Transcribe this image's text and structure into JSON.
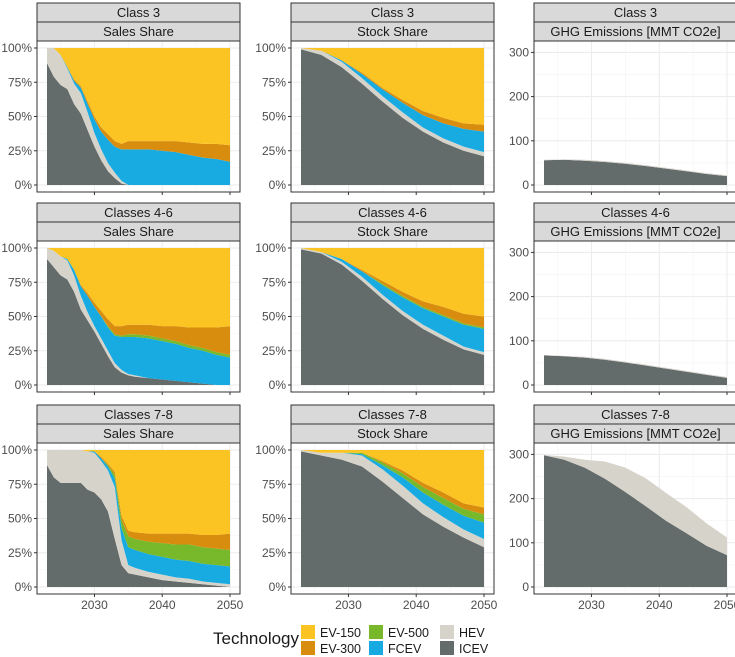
{
  "colors": {
    "ICEV": "#636b6b",
    "HEV": "#d6d3cb",
    "FCEV": "#17abe2",
    "EV-500": "#78b92c",
    "EV-300": "#d98d0f",
    "EV-150": "#fcc422"
  },
  "chart_data": {
    "type": "area",
    "x_ticks": [
      2030,
      2040,
      2050
    ],
    "x_range": [
      2023,
      2050
    ],
    "share_ylim": [
      0,
      100
    ],
    "share_ticks": [
      "0%",
      "25%",
      "50%",
      "75%",
      "100%"
    ],
    "ghg_ylim": [
      0,
      310
    ],
    "ghg_ticks": [
      "0",
      "100",
      "200",
      "300"
    ],
    "stack_order": [
      "ICEV",
      "HEV",
      "FCEV",
      "EV-500",
      "EV-300",
      "EV-150"
    ],
    "rows": [
      {
        "strip": "Class 3"
      },
      {
        "strip": "Classes 4-6"
      },
      {
        "strip": "Classes 7-8"
      }
    ],
    "columns": [
      {
        "strip": "Sales Share",
        "kind": "share"
      },
      {
        "strip": "Stock Share",
        "kind": "share"
      },
      {
        "strip": "GHG Emissions [MMT CO2e]",
        "kind": "ghg"
      }
    ],
    "panels": [
      {
        "row": 0,
        "col": 0,
        "x": [
          2023,
          2024,
          2025,
          2026,
          2027,
          2028,
          2029,
          2030,
          2031,
          2032,
          2033,
          2034,
          2035,
          2036,
          2038,
          2040,
          2042,
          2044,
          2046,
          2048,
          2050
        ],
        "series": [
          {
            "name": "ICEV",
            "values": [
              89,
              79,
              73,
              70,
              59,
              52,
              40,
              28,
              18,
              10,
              5,
              1,
              0,
              0,
              0,
              0,
              0,
              0,
              0,
              0,
              0
            ]
          },
          {
            "name": "HEV",
            "values": [
              11,
              21,
              22,
              15,
              15,
              15,
              13,
              10,
              8,
              6,
              4,
              2,
              0,
              0,
              0,
              0,
              0,
              0,
              0,
              0,
              0
            ]
          },
          {
            "name": "FCEV",
            "values": [
              0,
              0,
              0,
              1,
              2,
              4,
              6,
              10,
              13,
              17,
              19,
              23,
              26,
              26,
              26,
              25,
              24,
              22,
              20,
              19,
              17
            ]
          },
          {
            "name": "EV-500",
            "values": [
              0,
              0,
              0,
              0,
              0,
              0,
              0,
              0,
              0,
              0,
              0,
              0,
              0,
              0,
              0,
              0,
              0,
              0,
              0,
              0,
              0
            ]
          },
          {
            "name": "EV-300",
            "values": [
              0,
              0,
              0,
              0,
              1,
              1,
              2,
              2,
              3,
              4,
              4,
              4,
              6,
              6,
              6,
              7,
              8,
              9,
              10,
              11,
              12
            ]
          },
          {
            "name": "EV-150",
            "values": [
              0,
              0,
              5,
              14,
              23,
              28,
              39,
              50,
              58,
              63,
              68,
              70,
              68,
              68,
              68,
              68,
              68,
              69,
              70,
              70,
              71
            ]
          }
        ]
      },
      {
        "row": 0,
        "col": 1,
        "x": [
          2023,
          2026,
          2029,
          2032,
          2035,
          2038,
          2041,
          2044,
          2047,
          2050
        ],
        "series": [
          {
            "name": "ICEV",
            "values": [
              99,
              95,
              86,
              74,
              61,
              49,
              39,
              31,
              25,
              21
            ]
          },
          {
            "name": "HEV",
            "values": [
              1,
              3,
              4,
              4,
              4,
              4,
              3,
              3,
              3,
              3
            ]
          },
          {
            "name": "FCEV",
            "values": [
              0,
              0,
              1,
              3,
              5,
              7,
              9,
              11,
              13,
              15
            ]
          },
          {
            "name": "EV-500",
            "values": [
              0,
              0,
              0,
              0,
              0,
              0,
              0,
              0,
              0,
              0
            ]
          },
          {
            "name": "EV-300",
            "values": [
              0,
              0,
              0,
              1,
              1,
              2,
              3,
              4,
              4,
              5
            ]
          },
          {
            "name": "EV-150",
            "values": [
              0,
              2,
              9,
              18,
              29,
              38,
              46,
              51,
              55,
              56
            ]
          }
        ]
      },
      {
        "row": 0,
        "col": 2,
        "x": [
          2023,
          2026,
          2029,
          2032,
          2035,
          2038,
          2041,
          2044,
          2047,
          2050
        ],
        "series": [
          {
            "name": "ICEV",
            "values": [
              56,
              57,
              55,
              52,
              48,
              43,
              37,
              31,
              25,
              20
            ]
          },
          {
            "name": "HEV",
            "values": [
              1,
              1,
              2,
              2,
              2,
              2,
              2,
              2,
              2,
              2
            ]
          }
        ]
      },
      {
        "row": 1,
        "col": 0,
        "x": [
          2023,
          2024,
          2025,
          2026,
          2027,
          2028,
          2029,
          2030,
          2031,
          2032,
          2033,
          2034,
          2035,
          2036,
          2038,
          2040,
          2042,
          2044,
          2046,
          2048,
          2050
        ],
        "series": [
          {
            "name": "ICEV",
            "values": [
              92,
              86,
              80,
              77,
              68,
              55,
              47,
              39,
              30,
              21,
              13,
              9,
              7,
              6,
              5,
              4,
              3,
              2,
              1,
              0,
              0
            ]
          },
          {
            "name": "HEV",
            "values": [
              8,
              12,
              14,
              14,
              12,
              10,
              6,
              4,
              4,
              4,
              3,
              2,
              1,
              1,
              0,
              0,
              0,
              0,
              0,
              0,
              0
            ]
          },
          {
            "name": "FCEV",
            "values": [
              0,
              0,
              0,
              1,
              4,
              7,
              12,
              14,
              16,
              17,
              20,
              24,
              27,
              28,
              29,
              28,
              27,
              25,
              24,
              22,
              20
            ]
          },
          {
            "name": "EV-500",
            "values": [
              0,
              0,
              0,
              0,
              0,
              0,
              0,
              0,
              0,
              1,
              1,
              1,
              2,
              2,
              2,
              2,
              2,
              2,
              2,
              2,
              2
            ]
          },
          {
            "name": "EV-300",
            "values": [
              0,
              0,
              0,
              0,
              0,
              1,
              2,
              3,
              4,
              5,
              6,
              7,
              7,
              7,
              8,
              9,
              11,
              13,
              15,
              18,
              21
            ]
          },
          {
            "name": "EV-150",
            "values": [
              0,
              2,
              6,
              8,
              16,
              27,
              33,
              40,
              46,
              52,
              57,
              57,
              56,
              56,
              56,
              57,
              57,
              58,
              58,
              58,
              57
            ]
          }
        ]
      },
      {
        "row": 1,
        "col": 1,
        "x": [
          2023,
          2026,
          2029,
          2032,
          2035,
          2038,
          2041,
          2044,
          2047,
          2050
        ],
        "series": [
          {
            "name": "ICEV",
            "values": [
              99,
              96,
              88,
              76,
              63,
              51,
              41,
              33,
              26,
              22
            ]
          },
          {
            "name": "HEV",
            "values": [
              1,
              1,
              2,
              3,
              3,
              3,
              3,
              3,
              2,
              2
            ]
          },
          {
            "name": "FCEV",
            "values": [
              0,
              0,
              2,
              4,
              7,
              10,
              12,
              14,
              16,
              17
            ]
          },
          {
            "name": "EV-500",
            "values": [
              0,
              0,
              0,
              0,
              1,
              1,
              1,
              1,
              1,
              1
            ]
          },
          {
            "name": "EV-300",
            "values": [
              0,
              0,
              0,
              1,
              2,
              3,
              4,
              6,
              7,
              8
            ]
          },
          {
            "name": "EV-150",
            "values": [
              0,
              3,
              8,
              16,
              24,
              32,
              39,
              43,
              48,
              50
            ]
          }
        ]
      },
      {
        "row": 1,
        "col": 2,
        "x": [
          2023,
          2026,
          2029,
          2032,
          2035,
          2038,
          2041,
          2044,
          2047,
          2050
        ],
        "series": [
          {
            "name": "ICEV",
            "values": [
              67,
              65,
              62,
              57,
              51,
              44,
              37,
              30,
              23,
              16
            ]
          },
          {
            "name": "HEV",
            "values": [
              1,
              1,
              2,
              2,
              2,
              2,
              2,
              2,
              2,
              2
            ]
          }
        ]
      },
      {
        "row": 2,
        "col": 0,
        "x": [
          2023,
          2024,
          2025,
          2026,
          2027,
          2028,
          2029,
          2030,
          2031,
          2032,
          2033,
          2034,
          2035,
          2036,
          2038,
          2040,
          2042,
          2044,
          2046,
          2048,
          2050
        ],
        "series": [
          {
            "name": "ICEV",
            "values": [
              89,
              80,
              76,
              76,
              76,
              76,
              71,
              69,
              64,
              55,
              35,
              16,
              10,
              9,
              7,
              5,
              4,
              3,
              2,
              1,
              0
            ]
          },
          {
            "name": "HEV",
            "values": [
              11,
              20,
              24,
              24,
              24,
              24,
              28,
              29,
              28,
              30,
              38,
              18,
              6,
              5,
              4,
              4,
              3,
              3,
              2,
              2,
              2
            ]
          },
          {
            "name": "FCEV",
            "values": [
              0,
              0,
              0,
              0,
              0,
              0,
              0,
              1,
              2,
              3,
              6,
              9,
              13,
              13,
              13,
              13,
              13,
              13,
              13,
              13,
              13
            ]
          },
          {
            "name": "EV-500",
            "values": [
              0,
              0,
              0,
              0,
              0,
              0,
              0,
              0,
              0,
              1,
              3,
              6,
              8,
              8,
              9,
              10,
              11,
              12,
              12,
              12,
              12
            ]
          },
          {
            "name": "EV-300",
            "values": [
              0,
              0,
              0,
              0,
              0,
              0,
              0,
              0,
              1,
              1,
              2,
              3,
              4,
              5,
              6,
              7,
              8,
              8,
              9,
              10,
              12
            ]
          },
          {
            "name": "EV-150",
            "values": [
              0,
              0,
              0,
              0,
              0,
              0,
              1,
              1,
              5,
              10,
              16,
              48,
              59,
              60,
              61,
              61,
              61,
              61,
              62,
              62,
              61
            ]
          }
        ]
      },
      {
        "row": 2,
        "col": 1,
        "x": [
          2023,
          2026,
          2029,
          2032,
          2035,
          2038,
          2041,
          2044,
          2047,
          2050
        ],
        "series": [
          {
            "name": "ICEV",
            "values": [
              99,
              96,
              93,
              88,
              77,
              65,
              53,
              44,
              36,
              29
            ]
          },
          {
            "name": "HEV",
            "values": [
              1,
              2,
              5,
              8,
              9,
              9,
              8,
              7,
              6,
              6
            ]
          },
          {
            "name": "FCEV",
            "values": [
              0,
              0,
              0,
              1,
              3,
              6,
              8,
              9,
              10,
              12
            ]
          },
          {
            "name": "EV-500",
            "values": [
              0,
              0,
              0,
              1,
              2,
              3,
              4,
              5,
              5,
              6
            ]
          },
          {
            "name": "EV-300",
            "values": [
              0,
              0,
              0,
              0,
              1,
              2,
              3,
              4,
              4,
              5
            ]
          },
          {
            "name": "EV-150",
            "values": [
              0,
              2,
              2,
              2,
              8,
              15,
              24,
              31,
              39,
              42
            ]
          }
        ]
      },
      {
        "row": 2,
        "col": 2,
        "x": [
          2023,
          2026,
          2029,
          2032,
          2035,
          2038,
          2041,
          2044,
          2047,
          2050
        ],
        "series": [
          {
            "name": "ICEV",
            "values": [
              298,
              288,
              270,
              245,
              215,
              183,
              150,
              122,
              93,
              72
            ]
          },
          {
            "name": "HEV",
            "values": [
              1,
              7,
              18,
              39,
              55,
              63,
              63,
              59,
              51,
              40
            ]
          }
        ]
      }
    ],
    "legend": {
      "title": "Technology",
      "position": "bottom",
      "items": [
        "EV-150",
        "EV-300",
        "EV-500",
        "FCEV",
        "HEV",
        "ICEV"
      ]
    }
  }
}
